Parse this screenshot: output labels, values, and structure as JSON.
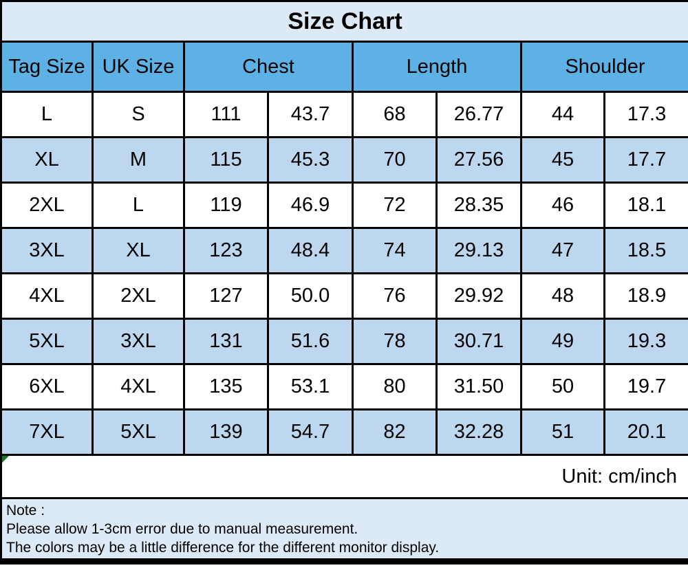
{
  "title": "Size Chart",
  "unit_label": "Unit: cm/inch",
  "columns": [
    {
      "label": "Tag Size",
      "span": 1
    },
    {
      "label": "UK Size",
      "span": 1
    },
    {
      "label": "Chest",
      "span": 2
    },
    {
      "label": "Length",
      "span": 2
    },
    {
      "label": "Shoulder",
      "span": 2
    }
  ],
  "note": {
    "heading": "Note :",
    "lines": [
      "Please allow 1-3cm error due to manual measurement.",
      "The colors may be a little difference for the different monitor display."
    ]
  },
  "colors": {
    "header_bg": "#5db1e4",
    "stripe_bg": "#bdd7ee",
    "panel_bg": "#dce9f6",
    "border": "#000000",
    "corner_marker_green": "#117a28",
    "text": "#000000"
  },
  "chart_data": {
    "type": "table",
    "title": "Size Chart",
    "unit": "cm/inch",
    "column_groups": [
      "Tag Size",
      "UK Size",
      "Chest",
      "Length",
      "Shoulder"
    ],
    "columns": [
      "Tag Size",
      "UK Size",
      "Chest (cm)",
      "Chest (inch)",
      "Length (cm)",
      "Length (inch)",
      "Shoulder (cm)",
      "Shoulder (inch)"
    ],
    "rows": [
      [
        "L",
        "S",
        "111",
        "43.7",
        "68",
        "26.77",
        "44",
        "17.3"
      ],
      [
        "XL",
        "M",
        "115",
        "45.3",
        "70",
        "27.56",
        "45",
        "17.7"
      ],
      [
        "2XL",
        "L",
        "119",
        "46.9",
        "72",
        "28.35",
        "46",
        "18.1"
      ],
      [
        "3XL",
        "XL",
        "123",
        "48.4",
        "74",
        "29.13",
        "47",
        "18.5"
      ],
      [
        "4XL",
        "2XL",
        "127",
        "50.0",
        "76",
        "29.92",
        "48",
        "18.9"
      ],
      [
        "5XL",
        "3XL",
        "131",
        "51.6",
        "78",
        "30.71",
        "49",
        "19.3"
      ],
      [
        "6XL",
        "4XL",
        "135",
        "53.1",
        "80",
        "31.50",
        "50",
        "19.7"
      ],
      [
        "7XL",
        "5XL",
        "139",
        "54.7",
        "82",
        "32.28",
        "51",
        "20.1"
      ]
    ]
  }
}
